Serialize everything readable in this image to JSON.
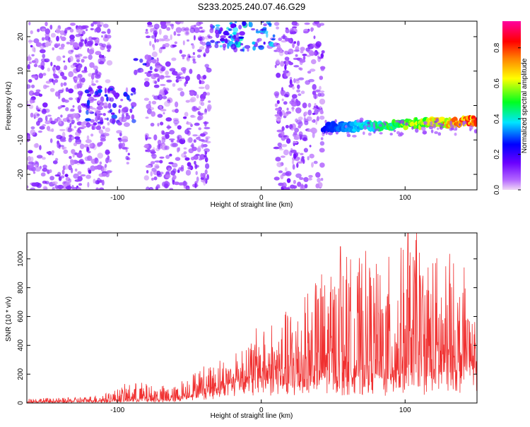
{
  "figure": {
    "title": "S233.2025.240.07.46.G29"
  },
  "chart_data": [
    {
      "type": "heatmap",
      "title": "S233.2025.240.07.46.G29",
      "xlabel": "Height of straight line (km)",
      "ylabel": "Frequency (Hz)",
      "xlim": [
        -163,
        150
      ],
      "ylim": [
        -24.5,
        24.5
      ],
      "x_ticks": [
        -100,
        0,
        100
      ],
      "x_tick_labels": [
        "-100",
        "0",
        "100"
      ],
      "y_ticks": [
        -20,
        -10,
        0,
        10,
        20
      ],
      "y_tick_labels": [
        "-20",
        "-10",
        "0",
        "10",
        "20"
      ],
      "grid": false,
      "colorbar": {
        "label": "Normalized spectral amplitude",
        "range": [
          0,
          0.95
        ],
        "ticks": [
          0.0,
          0.2,
          0.4,
          0.6,
          0.8
        ],
        "tick_labels": [
          "0.0",
          "0.2",
          "0.4",
          "0.6",
          "0.8"
        ],
        "colors": [
          "#f0d8f5",
          "#8a2be2",
          "#0000ff",
          "#00e5ff",
          "#00ff00",
          "#ffff00",
          "#ff8000",
          "#ff0000",
          "#ff00a0"
        ]
      },
      "regions": [
        {
          "name": "diffuse noise",
          "x_range": [
            -163,
            -125
          ],
          "freq_range": [
            -24.5,
            24.5
          ],
          "amplitude": 0.1
        },
        {
          "name": "diffuse noise",
          "x_range": [
            -128,
            -105
          ],
          "freq_range": [
            -24.5,
            24.5
          ],
          "amplitude": 0.1
        },
        {
          "name": "patch",
          "x_range": [
            -122,
            -88
          ],
          "freq_range": [
            -5,
            5
          ],
          "amplitude": 0.2
        },
        {
          "name": "patch",
          "x_range": [
            -88,
            -76
          ],
          "freq_range": [
            9,
            14
          ],
          "amplitude": 0.2
        },
        {
          "name": "diffuse noise",
          "x_range": [
            -80,
            -36
          ],
          "freq_range": [
            -24.5,
            24.5
          ],
          "amplitude": 0.1
        },
        {
          "name": "diffuse noise",
          "x_range": [
            -99,
            -92
          ],
          "freq_range": [
            -18,
            0
          ],
          "amplitude": 0.12
        },
        {
          "name": "band",
          "x_range": [
            -38,
            9
          ],
          "freq_range": [
            16,
            24.5
          ],
          "amplitude": 0.3
        },
        {
          "name": "diffuse noise",
          "x_range": [
            10,
            43
          ],
          "freq_range": [
            -24.5,
            24.5
          ],
          "amplitude": 0.1
        },
        {
          "name": "signal trace",
          "x_range": [
            43,
            150
          ],
          "freq_start": -6.5,
          "freq_end": -4.5,
          "amplitude_start": 0.25,
          "amplitude_end": 0.85
        }
      ]
    },
    {
      "type": "line",
      "xlabel": "Height of straight line (km)",
      "ylabel": "SNR (10 * v/v)",
      "xlim": [
        -163,
        150
      ],
      "ylim": [
        0,
        1180
      ],
      "x_ticks": [
        -100,
        0,
        100
      ],
      "x_tick_labels": [
        "-100",
        "0",
        "100"
      ],
      "y_ticks": [
        0,
        200,
        400,
        600,
        800,
        1000
      ],
      "y_tick_labels": [
        "0",
        "200",
        "400",
        "600",
        "800",
        "1000"
      ],
      "grid": false,
      "color": "#f03030",
      "envelope": {
        "x": [
          -163,
          -140,
          -120,
          -105,
          -95,
          -85,
          -75,
          -60,
          -52,
          -45,
          -35,
          -25,
          -15,
          -5,
          5,
          15,
          25,
          35,
          45,
          55,
          65,
          75,
          85,
          95,
          105,
          115,
          125,
          135,
          145,
          150
        ],
        "base": [
          5,
          5,
          8,
          10,
          12,
          12,
          12,
          15,
          40,
          60,
          80,
          120,
          140,
          160,
          150,
          140,
          120,
          130,
          150,
          160,
          150,
          170,
          160,
          170,
          180,
          170,
          190,
          200,
          220,
          250
        ],
        "peak": [
          40,
          35,
          50,
          80,
          130,
          150,
          130,
          120,
          200,
          240,
          300,
          320,
          420,
          520,
          600,
          620,
          800,
          900,
          960,
          1080,
          1000,
          1050,
          1000,
          1050,
          1180,
          1150,
          1040,
          960,
          860,
          620
        ]
      },
      "notable_peaks": [
        {
          "x": 55,
          "y": 1085
        },
        {
          "x": 102,
          "y": 1180
        },
        {
          "x": 108,
          "y": 1180
        },
        {
          "x": 131,
          "y": 1035
        },
        {
          "x": 141,
          "y": 940
        }
      ]
    }
  ]
}
